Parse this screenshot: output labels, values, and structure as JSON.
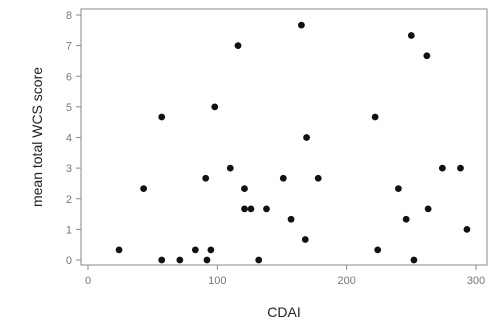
{
  "chart_data": {
    "type": "scatter",
    "xlabel": "CDAI",
    "ylabel": "mean total WCS score",
    "xlim": [
      0,
      300
    ],
    "ylim": [
      0,
      8
    ],
    "xticks": [
      0,
      100,
      200,
      300
    ],
    "yticks": [
      0,
      1,
      2,
      3,
      4,
      5,
      6,
      7,
      8
    ],
    "grid": false,
    "series": [
      {
        "color": "#111111",
        "points": [
          {
            "x": 24,
            "y": 0.33
          },
          {
            "x": 43,
            "y": 2.33
          },
          {
            "x": 57,
            "y": 4.67
          },
          {
            "x": 57,
            "y": 0
          },
          {
            "x": 71,
            "y": 0
          },
          {
            "x": 83,
            "y": 0.33
          },
          {
            "x": 91,
            "y": 2.67
          },
          {
            "x": 92,
            "y": 0
          },
          {
            "x": 95,
            "y": 0.33
          },
          {
            "x": 98,
            "y": 5.0
          },
          {
            "x": 110,
            "y": 3.0
          },
          {
            "x": 116,
            "y": 7.0
          },
          {
            "x": 121,
            "y": 2.33
          },
          {
            "x": 121,
            "y": 1.67
          },
          {
            "x": 126,
            "y": 1.67
          },
          {
            "x": 132,
            "y": 0
          },
          {
            "x": 138,
            "y": 1.67
          },
          {
            "x": 151,
            "y": 2.67
          },
          {
            "x": 157,
            "y": 1.33
          },
          {
            "x": 165,
            "y": 7.67
          },
          {
            "x": 169,
            "y": 4.0
          },
          {
            "x": 168,
            "y": 0.67
          },
          {
            "x": 178,
            "y": 2.67
          },
          {
            "x": 222,
            "y": 4.67
          },
          {
            "x": 224,
            "y": 0.33
          },
          {
            "x": 240,
            "y": 2.33
          },
          {
            "x": 246,
            "y": 1.33
          },
          {
            "x": 250,
            "y": 7.33
          },
          {
            "x": 252,
            "y": 0
          },
          {
            "x": 262,
            "y": 6.67
          },
          {
            "x": 263,
            "y": 1.67
          },
          {
            "x": 274,
            "y": 3.0
          },
          {
            "x": 288,
            "y": 3.0
          },
          {
            "x": 293,
            "y": 1.0
          }
        ]
      }
    ]
  }
}
